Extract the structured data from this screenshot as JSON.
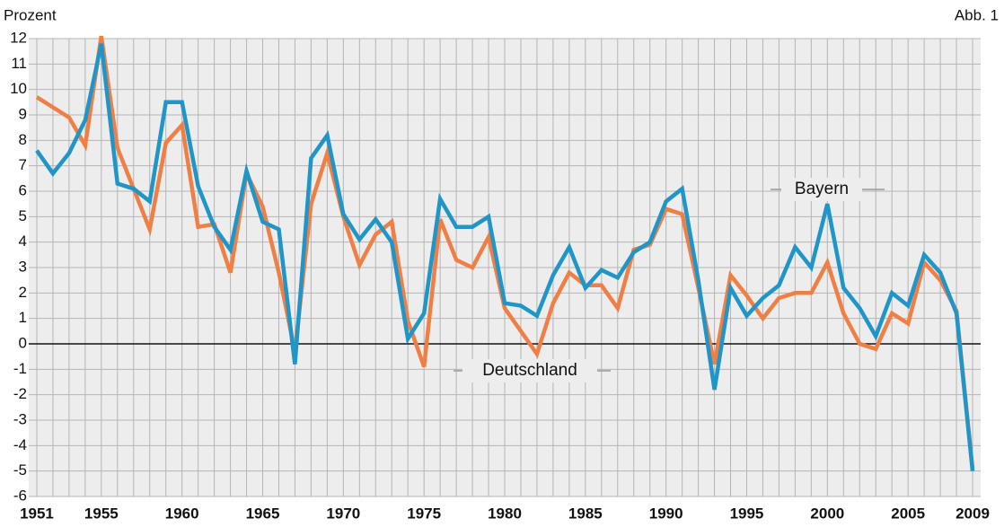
{
  "chart_data": {
    "type": "line",
    "y_label": "Prozent",
    "figure_label": "Abb. 1",
    "annotations": [
      "Bayern",
      "Deutschland"
    ],
    "categories": [
      "1951",
      null,
      null,
      null,
      "1955",
      null,
      null,
      null,
      null,
      "1960",
      null,
      null,
      null,
      null,
      "1965",
      null,
      null,
      null,
      null,
      "1970",
      null,
      null,
      null,
      null,
      "1975",
      null,
      null,
      null,
      null,
      "1980",
      null,
      null,
      null,
      null,
      "1985",
      null,
      null,
      null,
      null,
      "1990",
      null,
      null,
      null,
      null,
      "1995",
      null,
      null,
      null,
      null,
      "2000",
      null,
      null,
      null,
      null,
      "2005",
      null,
      null,
      null,
      "2009"
    ],
    "series": [
      {
        "name": "Deutschland",
        "color": "#f07f45",
        "values": [
          9.7,
          9.3,
          8.9,
          7.8,
          12.1,
          7.7,
          6.1,
          4.5,
          7.9,
          8.6,
          4.6,
          4.7,
          2.8,
          6.7,
          5.4,
          2.8,
          -0.3,
          5.5,
          7.5,
          5.0,
          3.1,
          4.3,
          4.8,
          0.9,
          -0.9,
          4.9,
          3.3,
          3.0,
          4.2,
          1.4,
          0.5,
          -0.4,
          1.6,
          2.8,
          2.3,
          2.3,
          1.4,
          3.7,
          3.9,
          5.3,
          5.1,
          2.2,
          -0.8,
          2.7,
          1.9,
          1.0,
          1.8,
          2.0,
          2.0,
          3.2,
          1.2,
          0.0,
          -0.2,
          1.2,
          0.8,
          3.2,
          2.5,
          1.3,
          -4.9
        ]
      },
      {
        "name": "Bayern",
        "color": "#1f95c8",
        "values": [
          7.6,
          6.7,
          7.5,
          8.8,
          11.8,
          6.3,
          6.1,
          5.6,
          9.5,
          9.5,
          6.2,
          4.6,
          3.7,
          6.8,
          4.8,
          4.5,
          -0.8,
          7.3,
          8.2,
          5.1,
          4.1,
          4.9,
          4.0,
          0.2,
          1.2,
          5.7,
          4.6,
          4.6,
          5.0,
          1.6,
          1.5,
          1.1,
          2.7,
          3.8,
          2.2,
          2.9,
          2.6,
          3.6,
          4.0,
          5.6,
          6.1,
          2.5,
          -1.8,
          2.2,
          1.1,
          1.8,
          2.3,
          3.8,
          3.0,
          5.5,
          2.2,
          1.4,
          0.3,
          2.0,
          1.5,
          3.5,
          2.8,
          1.2,
          -5.0
        ]
      }
    ],
    "ylim": [
      -6,
      12
    ],
    "yticks": [
      -6,
      -5,
      -4,
      -3,
      -2,
      -1,
      0,
      1,
      2,
      3,
      4,
      5,
      6,
      7,
      8,
      9,
      10,
      11,
      12
    ],
    "grid": true
  }
}
